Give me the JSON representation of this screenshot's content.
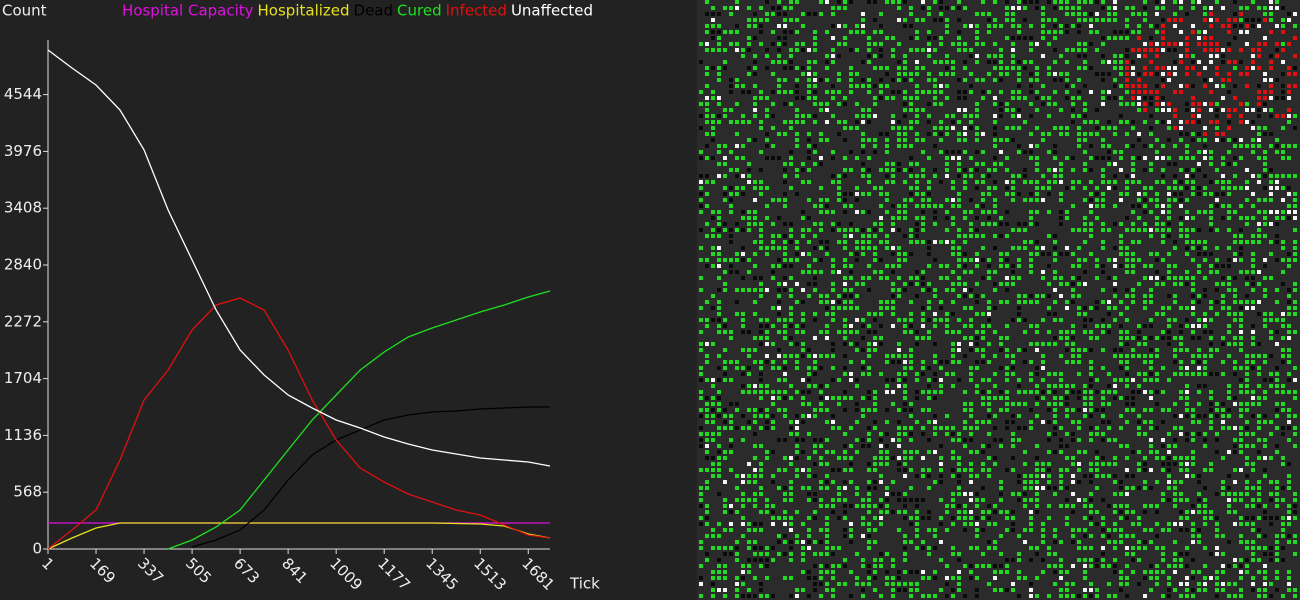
{
  "chart_data": {
    "type": "line",
    "y_label": "Count",
    "x_label": "Tick",
    "x": [
      1,
      85,
      169,
      253,
      337,
      421,
      505,
      589,
      673,
      757,
      841,
      925,
      1009,
      1093,
      1177,
      1261,
      1345,
      1429,
      1513,
      1597,
      1681,
      1757
    ],
    "xlim": [
      1,
      1757
    ],
    "xticks": [
      1,
      169,
      337,
      505,
      673,
      841,
      1009,
      1177,
      1345,
      1513,
      1681
    ],
    "ylim": [
      0,
      5040
    ],
    "yticks": [
      0,
      568,
      1136,
      1704,
      2272,
      2840,
      3408,
      3976,
      4544
    ],
    "series": [
      {
        "name": "Hospital Capacity",
        "color": "#e010e0",
        "values": [
          260,
          260,
          260,
          260,
          260,
          260,
          260,
          260,
          260,
          260,
          260,
          260,
          260,
          260,
          260,
          260,
          260,
          260,
          260,
          260,
          260,
          260
        ]
      },
      {
        "name": "Hospitalized",
        "color": "#e8e020",
        "values": [
          0,
          110,
          210,
          260,
          260,
          260,
          260,
          260,
          260,
          260,
          260,
          260,
          260,
          260,
          260,
          260,
          260,
          255,
          250,
          230,
          150,
          110
        ]
      },
      {
        "name": "Dead",
        "color": "#000000",
        "values": [
          null,
          null,
          null,
          null,
          null,
          null,
          20,
          90,
          190,
          390,
          690,
          940,
          1090,
          1190,
          1290,
          1340,
          1370,
          1380,
          1400,
          1410,
          1420,
          1420
        ]
      },
      {
        "name": "Cured",
        "color": "#20e020",
        "values": [
          null,
          null,
          null,
          null,
          null,
          0,
          90,
          220,
          390,
          690,
          990,
          1290,
          1540,
          1790,
          1970,
          2120,
          2210,
          2290,
          2370,
          2440,
          2520,
          2580
        ]
      },
      {
        "name": "Infected",
        "color": "#e01010",
        "values": [
          0,
          190,
          390,
          890,
          1490,
          1790,
          2190,
          2440,
          2510,
          2390,
          1990,
          1490,
          1090,
          810,
          670,
          550,
          470,
          390,
          340,
          240,
          140,
          110
        ]
      },
      {
        "name": "Unaffected",
        "color": "#ffffff",
        "values": [
          4990,
          4810,
          4640,
          4390,
          3990,
          3390,
          2890,
          2390,
          1990,
          1740,
          1540,
          1410,
          1290,
          1210,
          1120,
          1050,
          990,
          950,
          910,
          890,
          870,
          830
        ]
      }
    ]
  }
}
